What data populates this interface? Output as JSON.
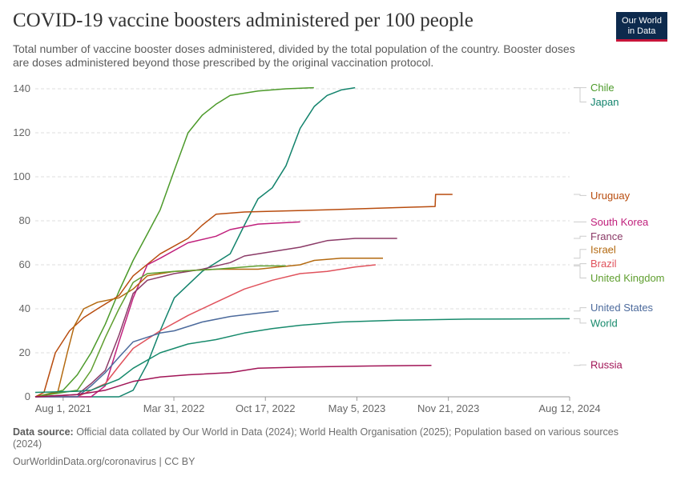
{
  "header": {
    "title": "COVID-19 vaccine boosters administered per 100 people",
    "subtitle": "Total number of vaccine booster doses administered, divided by the total population of the country. Booster doses are doses administered beyond those prescribed by the original vaccination protocol.",
    "logo_line1": "Our World",
    "logo_line2": "in Data"
  },
  "footer": {
    "source_label": "Data source:",
    "source_text": "Official data collated by Our World in Data (2024); World Health Organisation (2025); Population based on various sources (2024)",
    "credit": "OurWorldinData.org/coronavirus | CC BY"
  },
  "colors": {
    "grid": "#dddddd",
    "axis": "#999999",
    "logo_bg": "#0d2a4d",
    "logo_accent": "#c7153a"
  },
  "chart_data": {
    "type": "line",
    "title": "COVID-19 vaccine boosters administered per 100 people",
    "x_ticks": [
      "2021-08-01",
      "2022-03-31",
      "2022-10-17",
      "2023-05-05",
      "2023-11-21",
      "2024-08-12"
    ],
    "x_tick_labels": [
      "Aug 1, 2021",
      "Mar 31, 2022",
      "Oct 17, 2022",
      "May 5, 2023",
      "Nov 21, 2023",
      "Aug 12, 2024"
    ],
    "xlim": [
      "2021-06-01",
      "2024-08-12"
    ],
    "y_ticks": [
      0,
      20,
      40,
      60,
      80,
      100,
      120,
      140
    ],
    "ylim": [
      0,
      140
    ],
    "grid": "horizontal dashed",
    "legend": "right, line-end labels",
    "series": [
      {
        "name": "Chile",
        "color": "#4c9a2a",
        "label_y": 140.5,
        "points": [
          [
            "2021-06-01",
            0
          ],
          [
            "2021-08-01",
            3
          ],
          [
            "2021-09-01",
            10
          ],
          [
            "2021-10-01",
            20
          ],
          [
            "2021-11-01",
            33
          ],
          [
            "2021-12-01",
            48
          ],
          [
            "2022-01-01",
            62
          ],
          [
            "2022-02-01",
            74
          ],
          [
            "2022-03-01",
            85
          ],
          [
            "2022-04-01",
            103
          ],
          [
            "2022-05-01",
            120
          ],
          [
            "2022-06-01",
            128
          ],
          [
            "2022-07-01",
            133
          ],
          [
            "2022-08-01",
            137
          ],
          [
            "2022-10-01",
            139
          ],
          [
            "2022-12-01",
            140
          ],
          [
            "2023-01-31",
            140.5
          ]
        ]
      },
      {
        "name": "Japan",
        "color": "#12836c",
        "label_y": 134,
        "points": [
          [
            "2021-06-01",
            0
          ],
          [
            "2021-12-01",
            0
          ],
          [
            "2022-01-01",
            3
          ],
          [
            "2022-02-01",
            15
          ],
          [
            "2022-03-01",
            30
          ],
          [
            "2022-04-01",
            45
          ],
          [
            "2022-06-01",
            57
          ],
          [
            "2022-08-01",
            65
          ],
          [
            "2022-09-01",
            78
          ],
          [
            "2022-10-01",
            90
          ],
          [
            "2022-11-01",
            95
          ],
          [
            "2022-12-01",
            105
          ],
          [
            "2023-01-01",
            122
          ],
          [
            "2023-02-01",
            132
          ],
          [
            "2023-03-01",
            137
          ],
          [
            "2023-04-01",
            139.5
          ],
          [
            "2023-05-01",
            140.5
          ]
        ]
      },
      {
        "name": "Uruguay",
        "color": "#b84c0e",
        "label_y": 91.5,
        "points": [
          [
            "2021-06-01",
            0
          ],
          [
            "2021-06-20",
            2
          ],
          [
            "2021-07-15",
            20
          ],
          [
            "2021-08-15",
            30
          ],
          [
            "2021-09-15",
            36
          ],
          [
            "2021-10-15",
            40
          ],
          [
            "2021-12-01",
            46
          ],
          [
            "2022-01-01",
            55
          ],
          [
            "2022-03-01",
            65
          ],
          [
            "2022-05-01",
            72
          ],
          [
            "2022-06-01",
            78
          ],
          [
            "2022-07-01",
            83
          ],
          [
            "2022-09-01",
            84
          ],
          [
            "2022-12-01",
            84.5
          ],
          [
            "2023-03-01",
            85
          ],
          [
            "2023-08-01",
            86
          ],
          [
            "2023-10-23",
            86.5
          ],
          [
            "2023-10-24",
            92
          ],
          [
            "2023-11-30",
            92
          ]
        ]
      },
      {
        "name": "South Korea",
        "color": "#c0207c",
        "label_y": 79.5,
        "points": [
          [
            "2021-06-01",
            0
          ],
          [
            "2021-10-01",
            0
          ],
          [
            "2021-11-01",
            5
          ],
          [
            "2021-12-01",
            25
          ],
          [
            "2022-01-01",
            45
          ],
          [
            "2022-02-01",
            60
          ],
          [
            "2022-03-01",
            63
          ],
          [
            "2022-05-01",
            70
          ],
          [
            "2022-07-01",
            73
          ],
          [
            "2022-08-01",
            76
          ],
          [
            "2022-10-01",
            78.5
          ],
          [
            "2023-01-01",
            79.5
          ]
        ]
      },
      {
        "name": "France",
        "color": "#8b3a67",
        "label_y": 73,
        "points": [
          [
            "2021-06-01",
            0
          ],
          [
            "2021-09-01",
            1
          ],
          [
            "2021-10-01",
            6
          ],
          [
            "2021-11-01",
            12
          ],
          [
            "2021-12-01",
            28
          ],
          [
            "2022-01-01",
            47
          ],
          [
            "2022-02-01",
            53
          ],
          [
            "2022-04-01",
            56
          ],
          [
            "2022-06-01",
            58
          ],
          [
            "2022-08-01",
            61
          ],
          [
            "2022-09-01",
            64
          ],
          [
            "2022-11-01",
            66
          ],
          [
            "2023-01-01",
            68
          ],
          [
            "2023-03-01",
            71
          ],
          [
            "2023-05-01",
            72
          ],
          [
            "2023-08-01",
            72
          ]
        ]
      },
      {
        "name": "Israel",
        "color": "#b3690f",
        "label_y": 67,
        "points": [
          [
            "2021-06-01",
            0
          ],
          [
            "2021-07-20",
            2
          ],
          [
            "2021-08-10",
            20
          ],
          [
            "2021-08-25",
            32
          ],
          [
            "2021-09-15",
            40
          ],
          [
            "2021-10-15",
            43
          ],
          [
            "2021-12-01",
            45
          ],
          [
            "2022-01-01",
            49
          ],
          [
            "2022-02-01",
            55
          ],
          [
            "2022-04-01",
            57
          ],
          [
            "2022-07-01",
            58
          ],
          [
            "2022-10-01",
            58
          ],
          [
            "2023-01-01",
            60
          ],
          [
            "2023-02-01",
            62
          ],
          [
            "2023-04-01",
            63
          ],
          [
            "2023-07-01",
            63
          ]
        ]
      },
      {
        "name": "Brazil",
        "color": "#e0525c",
        "label_y": 60.5,
        "points": [
          [
            "2021-06-01",
            0
          ],
          [
            "2021-09-01",
            0
          ],
          [
            "2021-10-01",
            3
          ],
          [
            "2021-11-01",
            6
          ],
          [
            "2021-12-01",
            14
          ],
          [
            "2022-01-01",
            22
          ],
          [
            "2022-03-01",
            30
          ],
          [
            "2022-05-01",
            37
          ],
          [
            "2022-07-01",
            43
          ],
          [
            "2022-09-01",
            49
          ],
          [
            "2022-11-01",
            53
          ],
          [
            "2023-01-01",
            56
          ],
          [
            "2023-03-01",
            57
          ],
          [
            "2023-05-01",
            59
          ],
          [
            "2023-06-15",
            60
          ]
        ]
      },
      {
        "name": "United Kingdom",
        "color": "#5f9e2f",
        "label_y": 54,
        "points": [
          [
            "2021-06-01",
            0
          ],
          [
            "2021-09-01",
            3
          ],
          [
            "2021-10-01",
            12
          ],
          [
            "2021-11-01",
            27
          ],
          [
            "2021-12-01",
            40
          ],
          [
            "2022-01-01",
            52
          ],
          [
            "2022-02-01",
            56
          ],
          [
            "2022-04-01",
            57
          ],
          [
            "2022-07-01",
            58
          ],
          [
            "2022-10-01",
            59.5
          ],
          [
            "2022-12-01",
            59.5
          ]
        ]
      },
      {
        "name": "United States",
        "color": "#4c6a9c",
        "label_y": 40.5,
        "points": [
          [
            "2021-06-01",
            0
          ],
          [
            "2021-09-01",
            0
          ],
          [
            "2021-10-01",
            5
          ],
          [
            "2021-11-01",
            11
          ],
          [
            "2021-12-01",
            18
          ],
          [
            "2022-01-01",
            25
          ],
          [
            "2022-03-01",
            29
          ],
          [
            "2022-04-01",
            30
          ],
          [
            "2022-06-01",
            34
          ],
          [
            "2022-08-01",
            36.5
          ],
          [
            "2022-10-01",
            38
          ],
          [
            "2022-11-15",
            39
          ]
        ]
      },
      {
        "name": "World",
        "color": "#178a6c",
        "label_y": 33.5,
        "points": [
          [
            "2021-06-01",
            2
          ],
          [
            "2021-09-01",
            2.5
          ],
          [
            "2021-10-01",
            3
          ],
          [
            "2021-12-01",
            8
          ],
          [
            "2022-01-01",
            13
          ],
          [
            "2022-03-01",
            20
          ],
          [
            "2022-05-01",
            24
          ],
          [
            "2022-07-01",
            26
          ],
          [
            "2022-09-01",
            29
          ],
          [
            "2022-11-01",
            31
          ],
          [
            "2023-01-01",
            32.5
          ],
          [
            "2023-04-01",
            34
          ],
          [
            "2023-08-01",
            34.8
          ],
          [
            "2024-01-01",
            35.3
          ],
          [
            "2024-08-12",
            35.5
          ]
        ]
      },
      {
        "name": "Russia",
        "color": "#a11456",
        "label_y": 14.5,
        "points": [
          [
            "2021-06-01",
            0
          ],
          [
            "2021-09-01",
            1
          ],
          [
            "2021-11-01",
            3
          ],
          [
            "2022-01-01",
            7
          ],
          [
            "2022-03-01",
            9
          ],
          [
            "2022-05-01",
            10
          ],
          [
            "2022-08-01",
            11
          ],
          [
            "2022-10-01",
            13
          ],
          [
            "2023-01-01",
            13.5
          ],
          [
            "2023-06-01",
            14
          ],
          [
            "2023-10-15",
            14.3
          ]
        ]
      }
    ]
  }
}
